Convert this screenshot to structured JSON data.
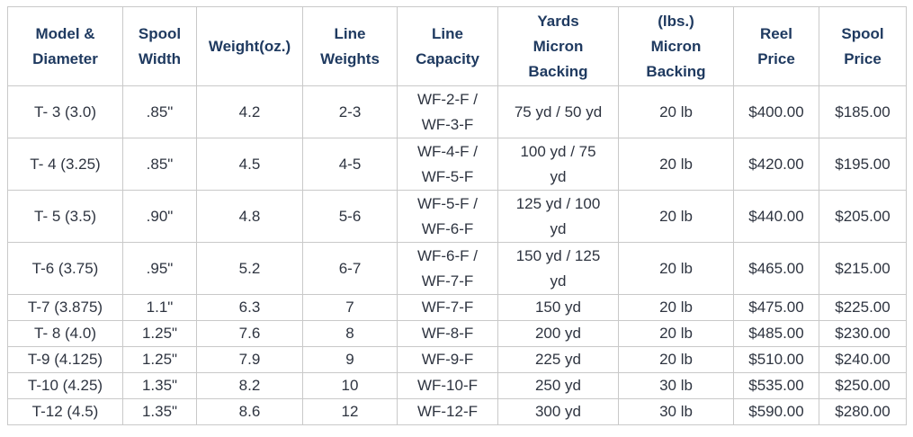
{
  "table": {
    "header": [
      [
        "Model &",
        "Diameter"
      ],
      [
        "Spool",
        "Width"
      ],
      [
        "Weight(oz.)"
      ],
      [
        "Line",
        "Weights"
      ],
      [
        "Line",
        "Capacity"
      ],
      [
        "Yards",
        "Micron",
        "Backing"
      ],
      [
        "(lbs.)",
        "Micron",
        "Backing"
      ],
      [
        "Reel",
        "Price"
      ],
      [
        "Spool",
        "Price"
      ]
    ],
    "rows": [
      [
        "T- 3 (3.0)",
        ".85\"",
        "4.2",
        "2-3",
        [
          "WF-2-F /",
          "WF-3-F"
        ],
        "75 yd / 50 yd",
        "20 lb",
        "$400.00",
        "$185.00"
      ],
      [
        "T- 4 (3.25)",
        ".85\"",
        "4.5",
        "4-5",
        [
          "WF-4-F /",
          "WF-5-F"
        ],
        [
          "100 yd / 75",
          "yd"
        ],
        "20 lb",
        "$420.00",
        "$195.00"
      ],
      [
        "T- 5 (3.5)",
        ".90\"",
        "4.8",
        "5-6",
        [
          "WF-5-F /",
          "WF-6-F"
        ],
        [
          "125 yd / 100",
          "yd"
        ],
        "20 lb",
        "$440.00",
        "$205.00"
      ],
      [
        "T-6 (3.75)",
        ".95\"",
        "5.2",
        "6-7",
        [
          "WF-6-F /",
          "WF-7-F"
        ],
        [
          "150 yd / 125",
          "yd"
        ],
        "20 lb",
        "$465.00",
        "$215.00"
      ],
      [
        "T-7 (3.875)",
        "1.1\"",
        "6.3",
        "7",
        "WF-7-F",
        "150 yd",
        "20 lb",
        "$475.00",
        "$225.00"
      ],
      [
        "T- 8 (4.0)",
        "1.25\"",
        "7.6",
        "8",
        "WF-8-F",
        "200 yd",
        "20 lb",
        "$485.00",
        "$230.00"
      ],
      [
        "T-9 (4.125)",
        "1.25\"",
        "7.9",
        "9",
        "WF-9-F",
        "225 yd",
        "20 lb",
        "$510.00",
        "$240.00"
      ],
      [
        "T-10 (4.25)",
        "1.35\"",
        "8.2",
        "10",
        "WF-10-F",
        "250 yd",
        "30 lb",
        "$535.00",
        "$250.00"
      ],
      [
        "T-12 (4.5)",
        "1.35\"",
        "8.6",
        "12",
        "WF-12-F",
        "300 yd",
        "30 lb",
        "$590.00",
        "$280.00"
      ]
    ]
  }
}
